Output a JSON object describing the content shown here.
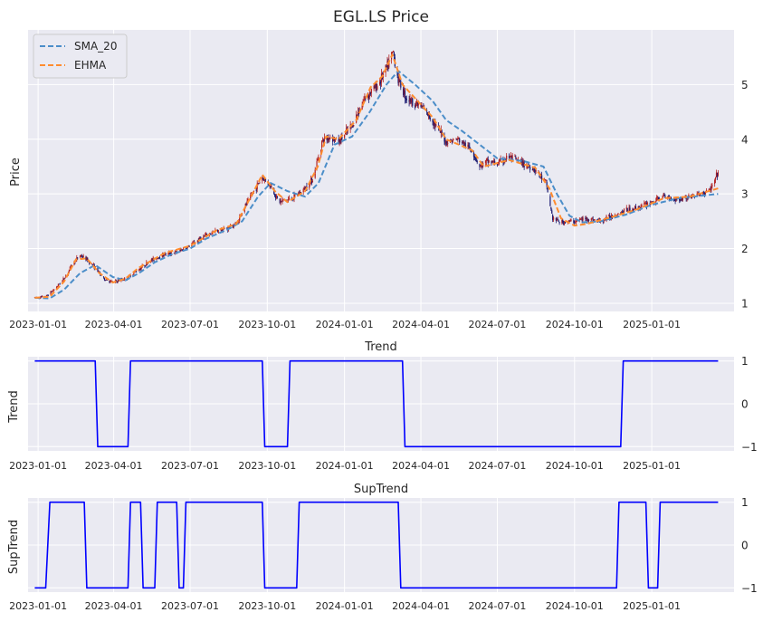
{
  "figure": {
    "background": "#ffffff",
    "axes_facecolor": "#eaeaf2",
    "grid_color": "#ffffff"
  },
  "chart_data": [
    {
      "type": "line",
      "title": "EGL.LS Price",
      "ylabel": "Price",
      "xlabel": "",
      "x_range": [
        "2022-12-20",
        "2025-04-09"
      ],
      "ylim": [
        0.85,
        6.0
      ],
      "y_ticks": [
        1,
        2,
        3,
        4,
        5
      ],
      "y_axis_side": "right",
      "x_ticks": [
        "2023-01-01",
        "2023-04-01",
        "2023-07-01",
        "2023-10-01",
        "2024-01-01",
        "2024-04-01",
        "2024-07-01",
        "2024-10-01",
        "2025-01-01"
      ],
      "grid": true,
      "legend_position": "upper left",
      "candles": {
        "up_color": "#b22222",
        "down_color": "#191970",
        "anchors": [
          [
            "2022-12-28",
            1.1
          ],
          [
            "2023-01-10",
            1.12
          ],
          [
            "2023-01-20",
            1.25
          ],
          [
            "2023-02-01",
            1.45
          ],
          [
            "2023-02-10",
            1.7
          ],
          [
            "2023-02-20",
            1.88
          ],
          [
            "2023-02-28",
            1.8
          ],
          [
            "2023-03-10",
            1.65
          ],
          [
            "2023-03-20",
            1.45
          ],
          [
            "2023-03-31",
            1.38
          ],
          [
            "2023-04-15",
            1.45
          ],
          [
            "2023-05-01",
            1.62
          ],
          [
            "2023-05-15",
            1.78
          ],
          [
            "2023-06-01",
            1.9
          ],
          [
            "2023-06-15",
            1.93
          ],
          [
            "2023-07-01",
            2.05
          ],
          [
            "2023-07-15",
            2.2
          ],
          [
            "2023-08-01",
            2.32
          ],
          [
            "2023-08-15",
            2.37
          ],
          [
            "2023-08-25",
            2.45
          ],
          [
            "2023-09-05",
            2.78
          ],
          [
            "2023-09-15",
            3.05
          ],
          [
            "2023-09-25",
            3.3
          ],
          [
            "2023-10-05",
            3.15
          ],
          [
            "2023-10-15",
            2.85
          ],
          [
            "2023-11-01",
            2.92
          ],
          [
            "2023-11-15",
            3.1
          ],
          [
            "2023-11-25",
            3.3
          ],
          [
            "2023-12-05",
            3.95
          ],
          [
            "2023-12-15",
            4.05
          ],
          [
            "2023-12-25",
            3.95
          ],
          [
            "2024-01-10",
            4.25
          ],
          [
            "2024-01-25",
            4.75
          ],
          [
            "2024-02-10",
            5.0
          ],
          [
            "2024-02-22",
            5.35
          ],
          [
            "2024-02-28",
            5.6
          ],
          [
            "2024-03-05",
            5.1
          ],
          [
            "2024-03-15",
            4.75
          ],
          [
            "2024-04-01",
            4.6
          ],
          [
            "2024-04-15",
            4.35
          ],
          [
            "2024-05-01",
            3.95
          ],
          [
            "2024-05-15",
            4.0
          ],
          [
            "2024-06-01",
            3.8
          ],
          [
            "2024-06-10",
            3.5
          ],
          [
            "2024-06-20",
            3.6
          ],
          [
            "2024-07-01",
            3.55
          ],
          [
            "2024-07-15",
            3.68
          ],
          [
            "2024-08-01",
            3.55
          ],
          [
            "2024-08-15",
            3.45
          ],
          [
            "2024-08-28",
            3.2
          ],
          [
            "2024-09-05",
            2.55
          ],
          [
            "2024-09-15",
            2.48
          ],
          [
            "2024-10-01",
            2.5
          ],
          [
            "2024-10-15",
            2.55
          ],
          [
            "2024-11-01",
            2.5
          ],
          [
            "2024-11-15",
            2.6
          ],
          [
            "2024-12-01",
            2.7
          ],
          [
            "2024-12-15",
            2.75
          ],
          [
            "2025-01-01",
            2.85
          ],
          [
            "2025-01-15",
            2.95
          ],
          [
            "2025-02-01",
            2.9
          ],
          [
            "2025-02-15",
            2.95
          ],
          [
            "2025-03-01",
            3.0
          ],
          [
            "2025-03-10",
            3.05
          ],
          [
            "2025-03-15",
            3.15
          ],
          [
            "2025-03-21",
            3.4
          ]
        ]
      },
      "series": [
        {
          "name": "SMA_20",
          "color": "#4c8ec9",
          "dash": true,
          "points": [
            [
              "2022-12-28",
              1.1
            ],
            [
              "2023-01-15",
              1.09
            ],
            [
              "2023-02-01",
              1.25
            ],
            [
              "2023-02-20",
              1.55
            ],
            [
              "2023-03-10",
              1.7
            ],
            [
              "2023-03-31",
              1.48
            ],
            [
              "2023-04-15",
              1.42
            ],
            [
              "2023-05-01",
              1.55
            ],
            [
              "2023-05-20",
              1.75
            ],
            [
              "2023-06-10",
              1.9
            ],
            [
              "2023-07-01",
              2.0
            ],
            [
              "2023-07-20",
              2.18
            ],
            [
              "2023-08-15",
              2.35
            ],
            [
              "2023-09-01",
              2.5
            ],
            [
              "2023-09-20",
              2.95
            ],
            [
              "2023-10-05",
              3.2
            ],
            [
              "2023-10-25",
              3.05
            ],
            [
              "2023-11-15",
              2.95
            ],
            [
              "2023-12-01",
              3.2
            ],
            [
              "2023-12-20",
              3.9
            ],
            [
              "2024-01-10",
              4.05
            ],
            [
              "2024-01-31",
              4.5
            ],
            [
              "2024-02-20",
              5.0
            ],
            [
              "2024-03-05",
              5.25
            ],
            [
              "2024-03-25",
              5.0
            ],
            [
              "2024-04-15",
              4.7
            ],
            [
              "2024-05-01",
              4.35
            ],
            [
              "2024-05-20",
              4.15
            ],
            [
              "2024-06-10",
              3.9
            ],
            [
              "2024-07-01",
              3.65
            ],
            [
              "2024-08-01",
              3.6
            ],
            [
              "2024-08-25",
              3.5
            ],
            [
              "2024-09-10",
              3.0
            ],
            [
              "2024-09-25",
              2.6
            ],
            [
              "2024-10-10",
              2.48
            ],
            [
              "2024-11-01",
              2.5
            ],
            [
              "2024-12-01",
              2.62
            ],
            [
              "2025-01-01",
              2.8
            ],
            [
              "2025-02-01",
              2.92
            ],
            [
              "2025-03-21",
              3.0
            ]
          ]
        },
        {
          "name": "EHMA",
          "color": "#ff8c2f",
          "dash": true,
          "points": [
            [
              "2022-12-28",
              1.1
            ],
            [
              "2023-01-15",
              1.12
            ],
            [
              "2023-02-01",
              1.4
            ],
            [
              "2023-02-15",
              1.8
            ],
            [
              "2023-02-28",
              1.82
            ],
            [
              "2023-03-15",
              1.55
            ],
            [
              "2023-03-31",
              1.38
            ],
            [
              "2023-04-15",
              1.45
            ],
            [
              "2023-05-01",
              1.65
            ],
            [
              "2023-06-01",
              1.92
            ],
            [
              "2023-07-01",
              2.05
            ],
            [
              "2023-08-01",
              2.33
            ],
            [
              "2023-08-25",
              2.45
            ],
            [
              "2023-09-15",
              3.05
            ],
            [
              "2023-09-25",
              3.35
            ],
            [
              "2023-10-10",
              3.05
            ],
            [
              "2023-10-25",
              2.85
            ],
            [
              "2023-11-15",
              3.05
            ],
            [
              "2023-11-30",
              3.5
            ],
            [
              "2023-12-10",
              4.05
            ],
            [
              "2023-12-25",
              4.0
            ],
            [
              "2024-01-15",
              4.35
            ],
            [
              "2024-02-01",
              4.95
            ],
            [
              "2024-02-15",
              5.15
            ],
            [
              "2024-02-27",
              5.55
            ],
            [
              "2024-03-10",
              5.0
            ],
            [
              "2024-03-25",
              4.75
            ],
            [
              "2024-04-15",
              4.4
            ],
            [
              "2024-05-01",
              4.0
            ],
            [
              "2024-06-01",
              3.8
            ],
            [
              "2024-06-15",
              3.5
            ],
            [
              "2024-07-15",
              3.62
            ],
            [
              "2024-08-15",
              3.48
            ],
            [
              "2024-09-01",
              3.1
            ],
            [
              "2024-09-15",
              2.55
            ],
            [
              "2024-10-01",
              2.42
            ],
            [
              "2024-10-15",
              2.45
            ],
            [
              "2024-11-15",
              2.58
            ],
            [
              "2024-12-15",
              2.72
            ],
            [
              "2025-01-15",
              2.92
            ],
            [
              "2025-02-15",
              2.95
            ],
            [
              "2025-03-21",
              3.1
            ]
          ]
        }
      ]
    },
    {
      "type": "line",
      "title": "Trend",
      "ylabel": "Trend",
      "xlabel": "",
      "x_range": [
        "2022-12-20",
        "2025-04-09"
      ],
      "ylim": [
        -1.1,
        1.1
      ],
      "y_ticks": [
        -1,
        0,
        1
      ],
      "y_axis_side": "right",
      "x_ticks": [
        "2023-01-01",
        "2023-04-01",
        "2023-07-01",
        "2023-10-01",
        "2024-01-01",
        "2024-04-01",
        "2024-07-01",
        "2024-10-01",
        "2025-01-01"
      ],
      "grid": true,
      "series": [
        {
          "name": "Trend",
          "color": "#0000ff",
          "points": [
            [
              "2022-12-28",
              1
            ],
            [
              "2023-03-10",
              1
            ],
            [
              "2023-03-13",
              -1
            ],
            [
              "2023-04-18",
              -1
            ],
            [
              "2023-04-21",
              1
            ],
            [
              "2023-09-25",
              1
            ],
            [
              "2023-09-28",
              -1
            ],
            [
              "2023-10-25",
              -1
            ],
            [
              "2023-10-28",
              1
            ],
            [
              "2024-03-10",
              1
            ],
            [
              "2024-03-13",
              -1
            ],
            [
              "2024-11-25",
              -1
            ],
            [
              "2024-11-28",
              1
            ],
            [
              "2025-03-21",
              1
            ]
          ]
        }
      ]
    },
    {
      "type": "line",
      "title": "SupTrend",
      "ylabel": "SupTrend",
      "xlabel": "",
      "x_range": [
        "2022-12-20",
        "2025-04-09"
      ],
      "ylim": [
        -1.1,
        1.1
      ],
      "y_ticks": [
        -1,
        0,
        1
      ],
      "y_axis_side": "right",
      "x_ticks": [
        "2023-01-01",
        "2023-04-01",
        "2023-07-01",
        "2023-10-01",
        "2024-01-01",
        "2024-04-01",
        "2024-07-01",
        "2024-10-01",
        "2025-01-01"
      ],
      "grid": true,
      "series": [
        {
          "name": "SupTrend",
          "color": "#0000ff",
          "points": [
            [
              "2022-12-28",
              -1
            ],
            [
              "2023-01-10",
              -1
            ],
            [
              "2023-01-15",
              1
            ],
            [
              "2023-02-25",
              1
            ],
            [
              "2023-02-28",
              -1
            ],
            [
              "2023-04-18",
              -1
            ],
            [
              "2023-04-21",
              1
            ],
            [
              "2023-05-03",
              1
            ],
            [
              "2023-05-06",
              -1
            ],
            [
              "2023-05-20",
              -1
            ],
            [
              "2023-05-23",
              1
            ],
            [
              "2023-06-15",
              1
            ],
            [
              "2023-06-18",
              -1
            ],
            [
              "2023-06-23",
              -1
            ],
            [
              "2023-06-26",
              1
            ],
            [
              "2023-09-25",
              1
            ],
            [
              "2023-09-28",
              -1
            ],
            [
              "2023-11-05",
              -1
            ],
            [
              "2023-11-08",
              1
            ],
            [
              "2024-03-05",
              1
            ],
            [
              "2024-03-08",
              -1
            ],
            [
              "2024-11-20",
              -1
            ],
            [
              "2024-11-23",
              1
            ],
            [
              "2024-12-25",
              1
            ],
            [
              "2024-12-28",
              -1
            ],
            [
              "2025-01-08",
              -1
            ],
            [
              "2025-01-11",
              1
            ],
            [
              "2025-03-21",
              1
            ]
          ]
        }
      ]
    }
  ]
}
